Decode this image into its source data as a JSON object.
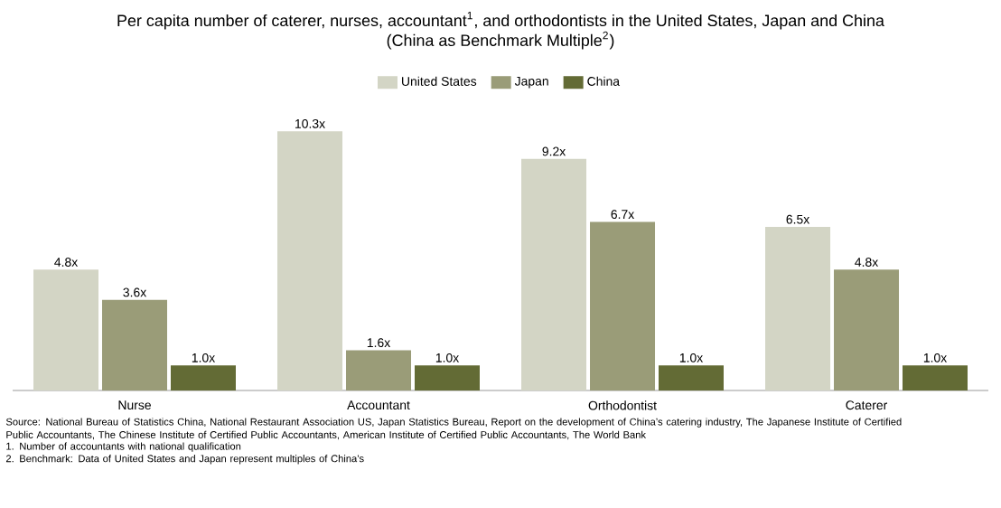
{
  "chart_data": {
    "type": "bar",
    "title": "Per capita number of caterer, nurses, accountant$^{1}$, and orthodontists in the United States, Japan and China",
    "subtitle": "(China as Benchmark Multiple$^{2}$)",
    "categories": [
      "Nurse",
      "Accountant",
      "Orthodontist",
      "Caterer"
    ],
    "series": [
      {
        "name": "United States",
        "color": "#d3d5c5",
        "values": [
          4.8,
          10.3,
          9.2,
          6.5
        ],
        "value_labels": [
          "4.8x",
          "10.3x",
          "9.2x",
          "6.5x"
        ]
      },
      {
        "name": "Japan",
        "color": "#9a9c78",
        "values": [
          3.6,
          1.6,
          6.7,
          4.8
        ],
        "value_labels": [
          "3.6x",
          "1.6x",
          "6.7x",
          "4.8x"
        ]
      },
      {
        "name": "China",
        "color": "#636b35",
        "values": [
          1.0,
          1.0,
          1.0,
          1.0
        ],
        "value_labels": [
          "1.0x",
          "1.0x",
          "1.0x",
          "1.0x"
        ]
      }
    ],
    "legend": "top",
    "annotations": [
      "Source: National Bureau of Statistics China, National Restaurant Association US, Japan Statistics Bureau, Report on the development of China’s catering industry, The Japanese Institute of Certified Public Accountants, The Chinese Institute of Certified Public Accountants, American Institute of Certified Public Accountants, The World Bank",
      "1.      Number of accountants with national qualification",
      "2.      Benchmark: Data of United States and Japan represent multiples of China’s"
    ]
  }
}
